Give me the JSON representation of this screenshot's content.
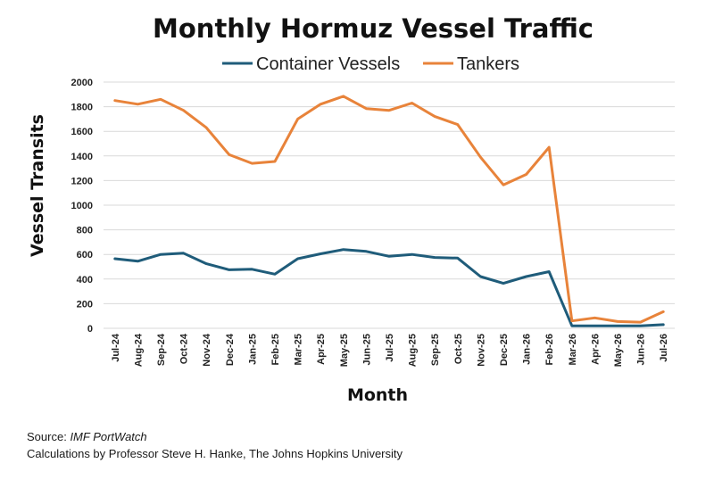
{
  "chart_data": {
    "type": "line",
    "title": "Monthly Hormuz Vessel Traffic",
    "xlabel": "Month",
    "ylabel": "Vessel Transits",
    "ylim": [
      0,
      2000
    ],
    "yticks": [
      0,
      200,
      400,
      600,
      800,
      1000,
      1200,
      1400,
      1600,
      1800,
      2000
    ],
    "grid": true,
    "legend_position": "top-center",
    "categories": [
      "Jul-24",
      "Aug-24",
      "Sep-24",
      "Oct-24",
      "Nov-24",
      "Dec-24",
      "Jan-25",
      "Feb-25",
      "Mar-25",
      "Apr-25",
      "May-25",
      "Jun-25",
      "Jul-25",
      "Aug-25",
      "Sep-25",
      "Oct-25",
      "Nov-25",
      "Dec-25",
      "Jan-26",
      "Feb-26",
      "Mar-26",
      "Apr-26",
      "May-26",
      "Jun-26",
      "Jul-26"
    ],
    "series": [
      {
        "name": "Container Vessels",
        "color": "#1f5c7a",
        "values": [
          565,
          545,
          600,
          610,
          525,
          475,
          480,
          440,
          565,
          605,
          640,
          625,
          585,
          600,
          575,
          570,
          420,
          365,
          420,
          460,
          20,
          20,
          20,
          20,
          30
        ]
      },
      {
        "name": "Tankers",
        "color": "#e8833a",
        "values": [
          1850,
          1820,
          1860,
          1770,
          1630,
          1410,
          1340,
          1355,
          1700,
          1820,
          1885,
          1785,
          1770,
          1830,
          1720,
          1655,
          1390,
          1165,
          1250,
          1470,
          60,
          85,
          55,
          50,
          135
        ]
      }
    ]
  },
  "footer": {
    "source_label": "Source:",
    "source_name": "IMF PortWatch",
    "calculations": "Calculations by Professor Steve H. Hanke, The Johns Hopkins University"
  }
}
